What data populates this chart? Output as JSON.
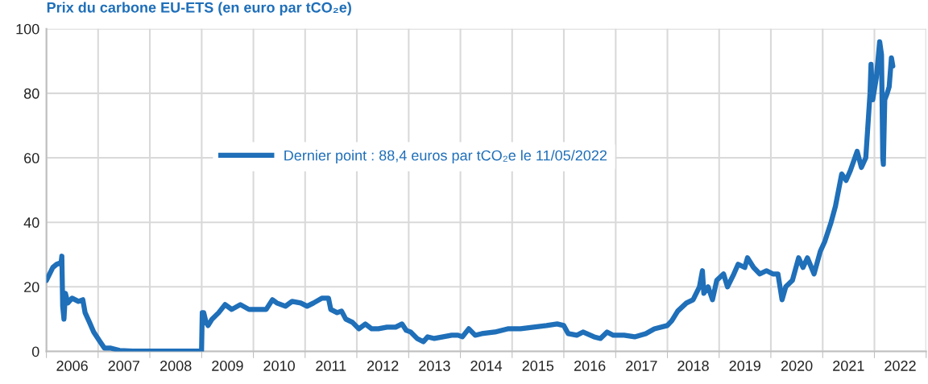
{
  "chart_data": {
    "type": "line",
    "title": "Prix du carbone EU-ETS (en euro par tCO₂e)",
    "xlim": [
      "2006-01-01",
      "2023-01-01"
    ],
    "xticks": [
      {
        "value": "2006-01-01",
        "label": null
      },
      {
        "value": "2006-07-02",
        "label": "2006"
      },
      {
        "value": "2007-01-01",
        "label": null
      },
      {
        "value": "2007-07-02",
        "label": "2007"
      },
      {
        "value": "2008-01-01",
        "label": null
      },
      {
        "value": "2008-07-02",
        "label": "2008"
      },
      {
        "value": "2009-01-01",
        "label": null
      },
      {
        "value": "2009-07-02",
        "label": "2009"
      },
      {
        "value": "2010-01-01",
        "label": null
      },
      {
        "value": "2010-07-02",
        "label": "2010"
      },
      {
        "value": "2011-01-01",
        "label": null
      },
      {
        "value": "2011-07-02",
        "label": "2011"
      },
      {
        "value": "2012-01-01",
        "label": null
      },
      {
        "value": "2012-07-02",
        "label": "2012"
      },
      {
        "value": "2013-01-01",
        "label": null
      },
      {
        "value": "2013-07-02",
        "label": "2013"
      },
      {
        "value": "2014-01-01",
        "label": null
      },
      {
        "value": "2014-07-02",
        "label": "2014"
      },
      {
        "value": "2015-01-01",
        "label": null
      },
      {
        "value": "2015-07-02",
        "label": "2015"
      },
      {
        "value": "2016-01-01",
        "label": null
      },
      {
        "value": "2016-07-02",
        "label": "2016"
      },
      {
        "value": "2017-01-01",
        "label": null
      },
      {
        "value": "2017-07-02",
        "label": "2017"
      },
      {
        "value": "2018-01-01",
        "label": null
      },
      {
        "value": "2018-07-02",
        "label": "2018"
      },
      {
        "value": "2019-01-01",
        "label": null
      },
      {
        "value": "2019-07-02",
        "label": "2019"
      },
      {
        "value": "2020-01-01",
        "label": null
      },
      {
        "value": "2020-07-02",
        "label": "2020"
      },
      {
        "value": "2021-01-01",
        "label": null
      },
      {
        "value": "2021-07-02",
        "label": "2021"
      },
      {
        "value": "2022-01-01",
        "label": null
      },
      {
        "value": "2022-07-02",
        "label": "2022"
      },
      {
        "value": "2023-01-01",
        "label": null
      }
    ],
    "ylim": [
      0,
      100
    ],
    "yticks": [
      0,
      20,
      40,
      60,
      80,
      100
    ],
    "grid": true,
    "legend": "center",
    "marker": "none",
    "line_style": "solid",
    "x": [
      "2006-01-01",
      "2006-02-15",
      "2006-03-15",
      "2006-04-15",
      "2006-04-20",
      "2006-04-26",
      "2006-05-05",
      "2006-05-15",
      "2006-06-01",
      "2006-07-01",
      "2006-08-15",
      "2006-09-15",
      "2006-10-01",
      "2006-11-01",
      "2006-12-01",
      "2007-01-15",
      "2007-02-15",
      "2007-04-01",
      "2007-06-01",
      "2007-09-01",
      "2008-12-31",
      "2009-01-05",
      "2009-01-15",
      "2009-02-01",
      "2009-02-15",
      "2009-03-15",
      "2009-05-01",
      "2009-06-15",
      "2009-08-01",
      "2009-10-01",
      "2009-12-01",
      "2010-02-01",
      "2010-04-01",
      "2010-05-15",
      "2010-06-15",
      "2010-08-15",
      "2010-10-01",
      "2010-12-01",
      "2011-01-15",
      "2011-03-01",
      "2011-05-01",
      "2011-06-15",
      "2011-07-01",
      "2011-08-15",
      "2011-09-15",
      "2011-10-15",
      "2011-12-01",
      "2012-01-15",
      "2012-03-01",
      "2012-04-15",
      "2012-06-01",
      "2012-08-01",
      "2012-10-01",
      "2012-11-15",
      "2012-12-15",
      "2013-01-15",
      "2013-03-01",
      "2013-04-15",
      "2013-05-15",
      "2013-07-01",
      "2013-09-01",
      "2013-11-01",
      "2013-12-15",
      "2014-01-15",
      "2014-03-01",
      "2014-04-15",
      "2014-06-01",
      "2014-09-01",
      "2014-12-01",
      "2015-03-01",
      "2015-06-01",
      "2015-09-01",
      "2015-11-15",
      "2015-12-31",
      "2016-02-01",
      "2016-04-01",
      "2016-05-15",
      "2016-08-01",
      "2016-09-15",
      "2016-11-01",
      "2016-12-15",
      "2017-03-01",
      "2017-05-15",
      "2017-08-01",
      "2017-10-01",
      "2017-12-31",
      "2018-02-01",
      "2018-03-15",
      "2018-05-15",
      "2018-07-01",
      "2018-08-15",
      "2018-09-05",
      "2018-09-15",
      "2018-10-15",
      "2018-11-15",
      "2018-12-15",
      "2019-02-01",
      "2019-03-01",
      "2019-04-15",
      "2019-05-15",
      "2019-07-01",
      "2019-07-20",
      "2019-09-01",
      "2019-10-15",
      "2019-12-01",
      "2020-01-15",
      "2020-02-20",
      "2020-03-20",
      "2020-04-15",
      "2020-06-01",
      "2020-07-15",
      "2020-08-15",
      "2020-09-15",
      "2020-11-01",
      "2020-12-15",
      "2021-01-15",
      "2021-03-01",
      "2021-04-01",
      "2021-05-15",
      "2021-06-15",
      "2021-07-15",
      "2021-09-01",
      "2021-10-01",
      "2021-11-01",
      "2021-12-01",
      "2021-12-08",
      "2021-12-20",
      "2022-01-15",
      "2022-02-07",
      "2022-02-20",
      "2022-03-01",
      "2022-03-05",
      "2022-03-15",
      "2022-04-01",
      "2022-04-15",
      "2022-05-01",
      "2022-05-11"
    ],
    "series": [
      {
        "name": "Dernier point : 88,4 euros par tCO₂e le 11/05/2022",
        "color": "#1f6fb9",
        "values": [
          22,
          26,
          27,
          27.5,
          29.5,
          14,
          10,
          18,
          15,
          16.5,
          15.5,
          16,
          12,
          9,
          6,
          3,
          1,
          1,
          0.3,
          0.1,
          0.1,
          12,
          12,
          9,
          8,
          10,
          12,
          14.5,
          13,
          14.5,
          13,
          13,
          13,
          16,
          15,
          14,
          15.5,
          15,
          14,
          15,
          16.5,
          16.5,
          13,
          12,
          12.5,
          10,
          9,
          7,
          8.5,
          7,
          7,
          7.5,
          7.5,
          8.5,
          6.5,
          6,
          4,
          3,
          4.5,
          4,
          4.5,
          5,
          5,
          4.5,
          7,
          5,
          5.5,
          6,
          7,
          7,
          7.5,
          8,
          8.5,
          8,
          5.5,
          5,
          6,
          4.5,
          4,
          6,
          5,
          5,
          4.5,
          5.5,
          7,
          8,
          9.5,
          12.5,
          15,
          16,
          20,
          25,
          18,
          20,
          16,
          22,
          24,
          20,
          24,
          27,
          26,
          29,
          26,
          24,
          25,
          24,
          24,
          16,
          20,
          22,
          29,
          26,
          29,
          24,
          31,
          34,
          40,
          45,
          55,
          53,
          56,
          62,
          57,
          60,
          80,
          89,
          78,
          85,
          96,
          92,
          60,
          58,
          78,
          80,
          82,
          91,
          88.4
        ]
      }
    ]
  }
}
